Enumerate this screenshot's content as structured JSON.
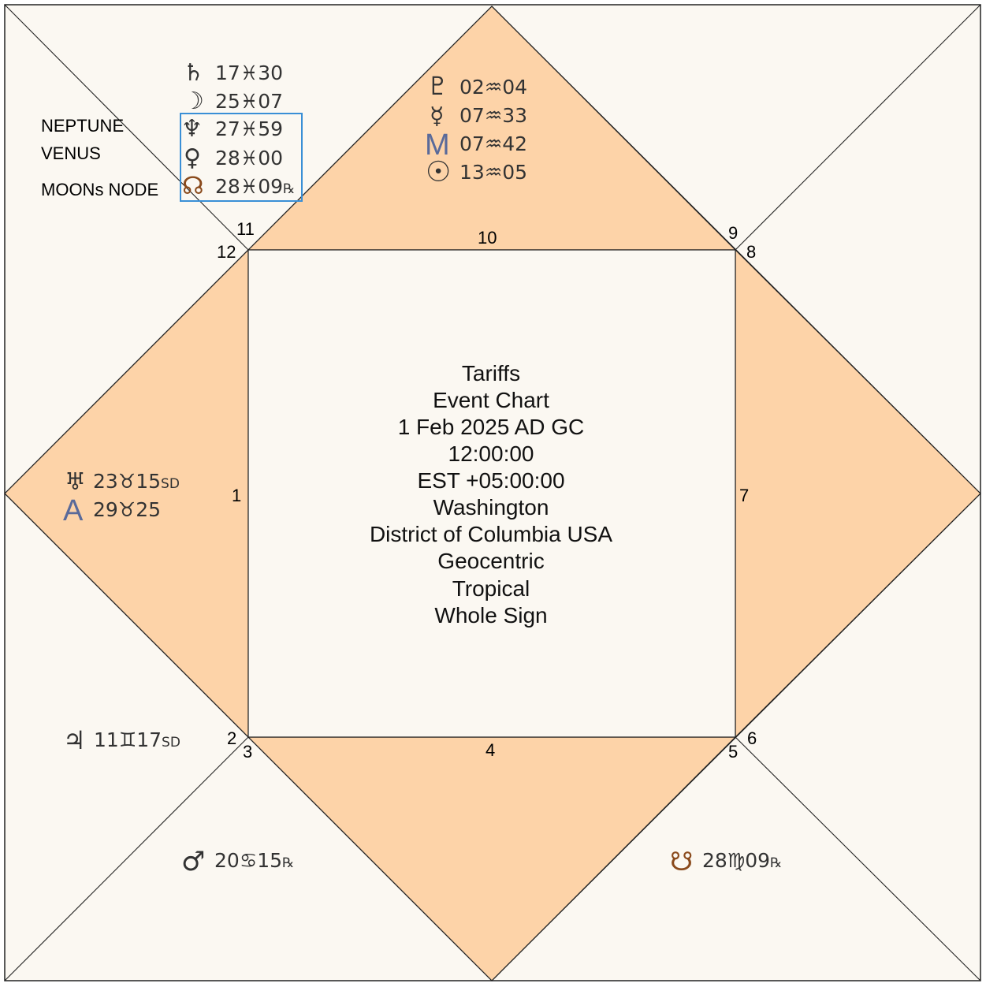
{
  "colors": {
    "background": "#fbf8f2",
    "kendra_fill": "#fdd3a8",
    "line": "#222222",
    "highlight": "#3a8fd6",
    "saturn": "#333333",
    "moon": "#333333",
    "neptune": "#333333",
    "venus": "#333333",
    "north_node": "#8a4a1c",
    "south_node": "#8a4a1c",
    "uranus": "#333333",
    "ascendant": "#5a6a9a",
    "jupiter": "#333333",
    "mars": "#333333",
    "pluto": "#333333",
    "mercury": "#333333",
    "midheaven": "#5a6a9a",
    "sun": "#333333"
  },
  "center_info": {
    "lines": [
      "Tariffs",
      "Event Chart",
      "1 Feb 2025 AD GC",
      "12:00:00",
      "EST +05:00:00",
      "Washington",
      "District of Columbia USA",
      "Geocentric",
      "Tropical",
      "Whole Sign"
    ]
  },
  "house_numbers": {
    "h1": "1",
    "h2": "2",
    "h3": "3",
    "h4": "4",
    "h5": "5",
    "h6": "6",
    "h7": "7",
    "h8": "8",
    "h9": "9",
    "h10": "10",
    "h11": "11",
    "h12": "12"
  },
  "annotations": {
    "neptune": "NEPTUNE",
    "venus": "VENUS",
    "node": "MOONs NODE"
  },
  "placements": {
    "saturn": {
      "glyph": "♄",
      "deg": "17",
      "sign": "♓",
      "min": "30",
      "rx": "",
      "icon": "saturn-icon"
    },
    "moon": {
      "glyph": "☽",
      "deg": "25",
      "sign": "♓",
      "min": "07",
      "rx": "",
      "icon": "moon-icon"
    },
    "neptune": {
      "glyph": "♆",
      "deg": "27",
      "sign": "♓",
      "min": "59",
      "rx": "",
      "icon": "neptune-icon"
    },
    "venus": {
      "glyph": "♀",
      "deg": "28",
      "sign": "♓",
      "min": "00",
      "rx": "",
      "icon": "venus-icon"
    },
    "north_node": {
      "glyph": "☊",
      "deg": "28",
      "sign": "♓",
      "min": "09",
      "rx": "℞",
      "icon": "north-node-icon"
    },
    "pluto": {
      "glyph": "♇",
      "deg": "02",
      "sign": "♒",
      "min": "04",
      "rx": "",
      "icon": "pluto-icon"
    },
    "mercury": {
      "glyph": "☿",
      "deg": "07",
      "sign": "♒",
      "min": "33",
      "rx": "",
      "icon": "mercury-icon"
    },
    "midheaven": {
      "glyph": "M",
      "deg": "07",
      "sign": "♒",
      "min": "42",
      "rx": "",
      "icon": "midheaven-icon"
    },
    "sun": {
      "glyph": "☉",
      "deg": "13",
      "sign": "♒",
      "min": "05",
      "rx": "",
      "icon": "sun-icon"
    },
    "uranus": {
      "glyph": "♅",
      "deg": "23",
      "sign": "♉",
      "min": "15",
      "rx": "SD",
      "icon": "uranus-icon"
    },
    "ascendant": {
      "glyph": "A",
      "deg": "29",
      "sign": "♉",
      "min": "25",
      "rx": "",
      "icon": "ascendant-icon"
    },
    "jupiter": {
      "glyph": "♃",
      "deg": "11",
      "sign": "♊",
      "min": "17",
      "rx": "SD",
      "icon": "jupiter-icon"
    },
    "mars": {
      "glyph": "♂",
      "deg": "20",
      "sign": "♋",
      "min": "15",
      "rx": "℞",
      "icon": "mars-icon"
    },
    "south_node": {
      "glyph": "☋",
      "deg": "28",
      "sign": "♍",
      "min": "09",
      "rx": "℞",
      "icon": "south-node-icon"
    }
  }
}
